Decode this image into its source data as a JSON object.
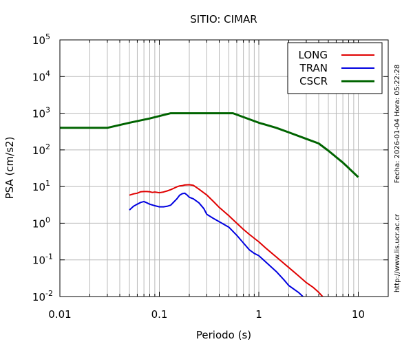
{
  "chart_data": {
    "type": "line",
    "title": "SITIO: CIMAR",
    "xlabel": "Periodo (s)",
    "ylabel": "PSA (cm/s2)",
    "x_scale": "log",
    "y_scale": "log",
    "xlim": [
      0.01,
      20
    ],
    "ylim": [
      0.01,
      100000
    ],
    "x_ticks": [
      {
        "value": 0.01,
        "label": "0.01"
      },
      {
        "value": 0.1,
        "label": "0.1"
      },
      {
        "value": 1,
        "label": "1"
      },
      {
        "value": 10,
        "label": "10"
      }
    ],
    "y_ticks": [
      {
        "value": 0.01,
        "base": "10",
        "exp": "-2"
      },
      {
        "value": 0.1,
        "base": "10",
        "exp": "-1"
      },
      {
        "value": 1,
        "base": "10",
        "exp": "0"
      },
      {
        "value": 10,
        "base": "10",
        "exp": "1"
      },
      {
        "value": 100,
        "base": "10",
        "exp": "2"
      },
      {
        "value": 1000,
        "base": "10",
        "exp": "3"
      },
      {
        "value": 10000,
        "base": "10",
        "exp": "4"
      },
      {
        "value": 100000,
        "base": "10",
        "exp": "5"
      }
    ],
    "grid": true,
    "legend_position": "top-right",
    "series": [
      {
        "name": "LONG",
        "color": "#e00000",
        "x": [
          0.05,
          0.055,
          0.06,
          0.065,
          0.07,
          0.075,
          0.08,
          0.085,
          0.09,
          0.1,
          0.11,
          0.12,
          0.13,
          0.14,
          0.15,
          0.16,
          0.17,
          0.18,
          0.2,
          0.22,
          0.25,
          0.3,
          0.35,
          0.4,
          0.5,
          0.6,
          0.7,
          0.8,
          1.0,
          1.2,
          1.5,
          2.0,
          2.5,
          3.0,
          3.5,
          4.0,
          4.5
        ],
        "y": [
          5.8,
          6.3,
          6.6,
          7.2,
          7.3,
          7.3,
          7.2,
          6.9,
          7.1,
          6.8,
          7.1,
          7.6,
          8.2,
          9.0,
          9.8,
          10.4,
          10.6,
          11.0,
          11.2,
          10.8,
          8.5,
          5.9,
          3.9,
          2.7,
          1.6,
          1.0,
          0.68,
          0.5,
          0.31,
          0.2,
          0.12,
          0.062,
          0.037,
          0.024,
          0.018,
          0.013,
          0.0092
        ]
      },
      {
        "name": "TRAN",
        "color": "#0000e0",
        "x": [
          0.05,
          0.055,
          0.06,
          0.065,
          0.07,
          0.075,
          0.08,
          0.09,
          0.1,
          0.11,
          0.12,
          0.13,
          0.14,
          0.15,
          0.16,
          0.17,
          0.18,
          0.19,
          0.2,
          0.22,
          0.25,
          0.28,
          0.3,
          0.35,
          0.4,
          0.5,
          0.6,
          0.7,
          0.8,
          0.9,
          1.0,
          1.2,
          1.5,
          1.8,
          2.0,
          2.5,
          2.8
        ],
        "y": [
          2.3,
          2.9,
          3.3,
          3.7,
          3.9,
          3.6,
          3.3,
          3.0,
          2.8,
          2.8,
          2.9,
          3.1,
          3.8,
          4.6,
          5.8,
          6.4,
          6.6,
          5.9,
          5.1,
          4.6,
          3.6,
          2.5,
          1.75,
          1.35,
          1.1,
          0.78,
          0.47,
          0.29,
          0.19,
          0.15,
          0.13,
          0.083,
          0.048,
          0.028,
          0.02,
          0.013,
          0.0098
        ]
      },
      {
        "name": "CSCR",
        "color": "#006400",
        "x": [
          0.01,
          0.03,
          0.05,
          0.08,
          0.13,
          0.55,
          1.0,
          1.5,
          2.0,
          3.0,
          4.0,
          5.0,
          7.0,
          10.0
        ],
        "y": [
          400,
          400,
          550,
          720,
          1000,
          1000,
          550,
          400,
          300,
          200,
          150,
          95,
          45,
          18
        ]
      }
    ],
    "side_annotations": [
      "Fecha: 2026-01-04 Hora: 05:22:28",
      "http://www.lis.ucr.ac.cr"
    ]
  }
}
